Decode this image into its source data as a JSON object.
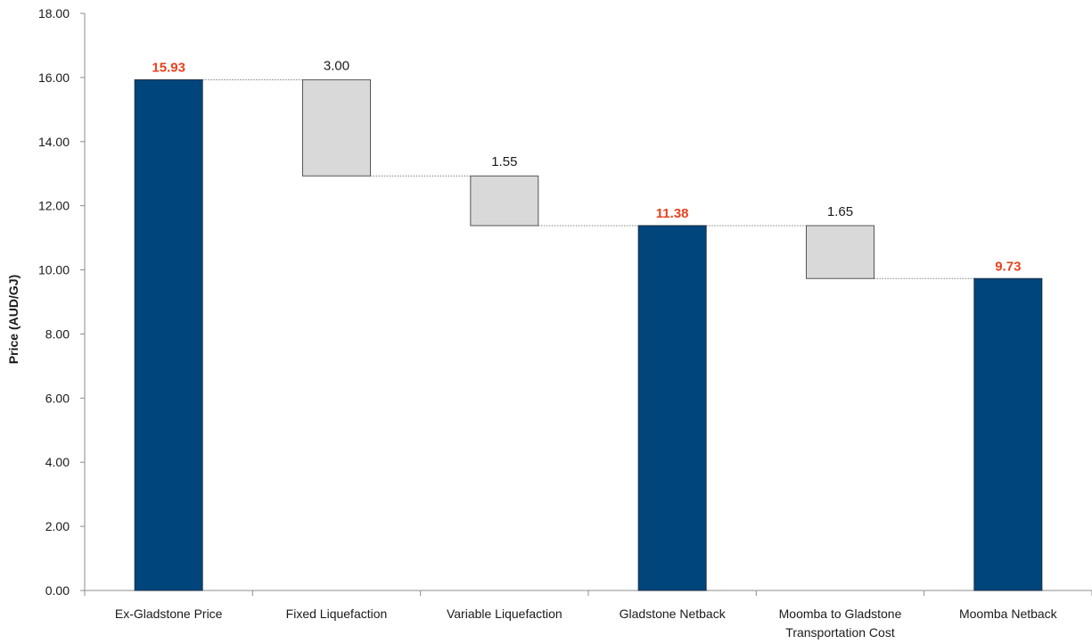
{
  "chart_data": {
    "type": "bar",
    "subtype": "waterfall",
    "title": "",
    "xlabel": "",
    "ylabel": "Price (AUD/GJ)",
    "ylim": [
      0,
      18
    ],
    "yticks": [
      "0.00",
      "2.00",
      "4.00",
      "6.00",
      "8.00",
      "10.00",
      "12.00",
      "14.00",
      "16.00",
      "18.00"
    ],
    "grid": false,
    "legend": "none",
    "categories": [
      [
        "Ex-Gladstone Price"
      ],
      [
        "Fixed Liquefaction"
      ],
      [
        "Variable Liquefaction"
      ],
      [
        "Gladstone Netback"
      ],
      [
        "Moomba to Gladstone",
        "Transportation Cost"
      ],
      [
        "Moomba Netback"
      ]
    ],
    "bars": [
      {
        "kind": "total",
        "start": 0,
        "end": 15.93,
        "label": "15.93"
      },
      {
        "kind": "step",
        "start": 15.93,
        "end": 12.93,
        "label": "3.00"
      },
      {
        "kind": "step",
        "start": 12.93,
        "end": 11.38,
        "label": "1.55"
      },
      {
        "kind": "total",
        "start": 0,
        "end": 11.38,
        "label": "11.38"
      },
      {
        "kind": "step",
        "start": 11.38,
        "end": 9.73,
        "label": "1.65"
      },
      {
        "kind": "total",
        "start": 0,
        "end": 9.73,
        "label": "9.73"
      }
    ],
    "colors": {
      "total": "#00457c",
      "step": "#d9d9d9",
      "step_border": "#555555",
      "total_label": "#e8411f",
      "connector": "#7f7f7f",
      "axis": "#8c8c8c"
    }
  }
}
